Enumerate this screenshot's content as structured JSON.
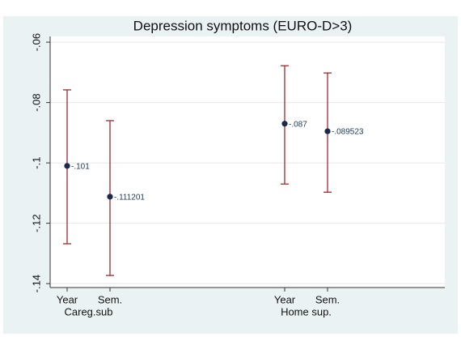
{
  "chart_data": {
    "type": "errorbar",
    "title": "Depression symptoms (EURO-D>3)",
    "groups": [
      {
        "name": "Careg.sub",
        "categories": [
          "Year",
          "Sem."
        ],
        "values": [
          -0.101,
          -0.111201
        ],
        "value_labels": [
          "-.101",
          "-.111201"
        ],
        "lower": [
          -0.1268,
          -0.1373
        ],
        "upper": [
          -0.0758,
          -0.086
        ]
      },
      {
        "name": "Home sup.",
        "categories": [
          "Year",
          "Sem."
        ],
        "values": [
          -0.087,
          -0.089523
        ],
        "value_labels": [
          "-.087",
          "-.089523"
        ],
        "lower": [
          -0.107,
          -0.1097
        ],
        "upper": [
          -0.0678,
          -0.0702
        ]
      }
    ],
    "bar_color": "#a3282c",
    "point_color": "#1a2a4a",
    "ylim": [
      -0.1413,
      -0.0581
    ],
    "yticks": [
      {
        "value": -0.14,
        "label": "-.14"
      },
      {
        "value": -0.12,
        "label": "-.12"
      },
      {
        "value": -0.1,
        "label": "-.1"
      },
      {
        "value": -0.08,
        "label": "-.08"
      },
      {
        "value": -0.06,
        "label": "-.06"
      }
    ],
    "grid": true
  }
}
